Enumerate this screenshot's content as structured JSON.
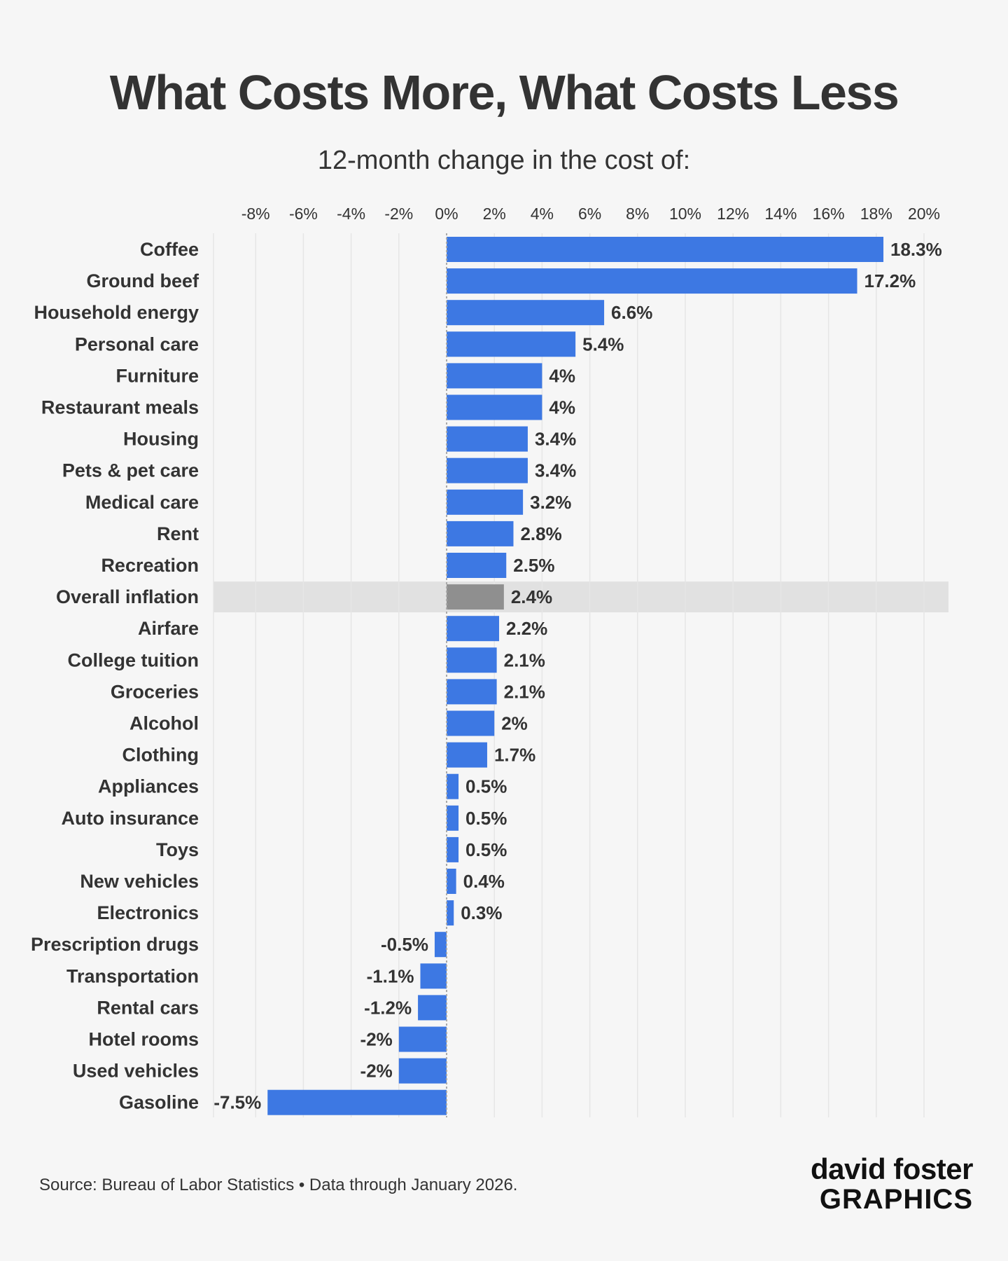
{
  "header": {
    "title": "What Costs More, What Costs Less",
    "subtitle": "12-month change in the cost of:"
  },
  "footer": {
    "source": "Source: Bureau of Labor Statistics • Data through January 2026."
  },
  "logo": {
    "line1": "david foster",
    "line2": "GRAPHICS"
  },
  "colors": {
    "bar": "#3d78e3",
    "highlight_bar": "#8f8f8f",
    "highlight_band": "#e1e1e1",
    "background": "#f6f6f6",
    "grid": "#e6e6e6",
    "zero_line": "#aaaaaa",
    "logo_accent": "#29a3e0"
  },
  "chart_data": {
    "type": "bar",
    "orientation": "horizontal",
    "title": "What Costs More, What Costs Less",
    "subtitle": "12-month change in the cost of:",
    "xlim": [
      -10,
      21
    ],
    "ticks": [
      -8,
      -6,
      -4,
      -2,
      0,
      2,
      4,
      6,
      8,
      10,
      12,
      14,
      16,
      18,
      20
    ],
    "tick_labels": [
      "-8%",
      "-6%",
      "-4%",
      "-2%",
      "0%",
      "2%",
      "4%",
      "6%",
      "8%",
      "10%",
      "12%",
      "14%",
      "16%",
      "18%",
      "20%"
    ],
    "grid": true,
    "highlight": "Overall inflation",
    "categories": [
      "Coffee",
      "Ground beef",
      "Household energy",
      "Personal care",
      "Furniture",
      "Restaurant meals",
      "Housing",
      "Pets & pet care",
      "Medical care",
      "Rent",
      "Recreation",
      "Overall inflation",
      "Airfare",
      "College tuition",
      "Groceries",
      "Alcohol",
      "Clothing",
      "Appliances",
      "Auto insurance",
      "Toys",
      "New vehicles",
      "Electronics",
      "Prescription drugs",
      "Transportation",
      "Rental cars",
      "Hotel rooms",
      "Used vehicles",
      "Gasoline"
    ],
    "values": [
      18.3,
      17.2,
      6.6,
      5.4,
      4,
      4,
      3.4,
      3.4,
      3.2,
      2.8,
      2.5,
      2.4,
      2.2,
      2.1,
      2.1,
      2,
      1.7,
      0.5,
      0.5,
      0.5,
      0.4,
      0.3,
      -0.5,
      -1.1,
      -1.2,
      -2,
      -2,
      -7.5
    ],
    "value_labels": [
      "18.3%",
      "17.2%",
      "6.6%",
      "5.4%",
      "4%",
      "4%",
      "3.4%",
      "3.4%",
      "3.2%",
      "2.8%",
      "2.5%",
      "2.4%",
      "2.2%",
      "2.1%",
      "2.1%",
      "2%",
      "1.7%",
      "0.5%",
      "0.5%",
      "0.5%",
      "0.4%",
      "0.3%",
      "-0.5%",
      "-1.1%",
      "-1.2%",
      "-2%",
      "-2%",
      "-7.5%"
    ]
  }
}
